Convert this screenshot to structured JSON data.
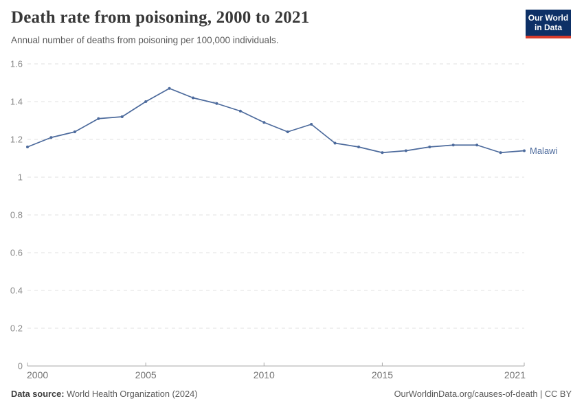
{
  "header": {
    "title": "Death rate from poisoning, 2000 to 2021",
    "subtitle": "Annual number of deaths from poisoning per 100,000 individuals."
  },
  "logo": {
    "line1": "Our World",
    "line2": "in Data",
    "bg_color": "#0d3066",
    "accent_color": "#d73c2c"
  },
  "chart_data": {
    "type": "line",
    "title": "Death rate from poisoning, 2000 to 2021",
    "x": [
      2000,
      2001,
      2002,
      2003,
      2004,
      2005,
      2006,
      2007,
      2008,
      2009,
      2010,
      2011,
      2012,
      2013,
      2014,
      2015,
      2016,
      2017,
      2018,
      2019,
      2020,
      2021
    ],
    "series": [
      {
        "name": "Malawi",
        "color": "#4c6a9c",
        "values": [
          1.16,
          1.21,
          1.24,
          1.31,
          1.32,
          1.4,
          1.47,
          1.42,
          1.39,
          1.35,
          1.29,
          1.24,
          1.28,
          1.18,
          1.16,
          1.13,
          1.14,
          1.16,
          1.17,
          1.17,
          1.13,
          1.14
        ]
      }
    ],
    "xlabel": "",
    "ylabel": "",
    "ylim": [
      0,
      1.6
    ],
    "yticks": [
      0,
      0.2,
      0.4,
      0.6,
      0.8,
      1,
      1.2,
      1.4,
      1.6
    ],
    "ytick_labels": [
      "0",
      "0.2",
      "0.4",
      "0.6",
      "0.8",
      "1",
      "1.2",
      "1.4",
      "1.6"
    ],
    "xticks": [
      2000,
      2005,
      2010,
      2015,
      2021
    ],
    "xtick_labels": [
      "2000",
      "2005",
      "2010",
      "2015",
      "2021"
    ],
    "grid": "horizontal-dashed",
    "legend_position": "end-of-line",
    "grid_color": "#e0e0e0",
    "axis_color": "#a9a9a9",
    "ytick_label_color": "#8a8a8a",
    "xtick_label_color": "#737373"
  },
  "footer": {
    "source_label": "Data source:",
    "source_text": " World Health Organization (2024)",
    "link_text": "OurWorldinData.org/causes-of-death | CC BY"
  }
}
